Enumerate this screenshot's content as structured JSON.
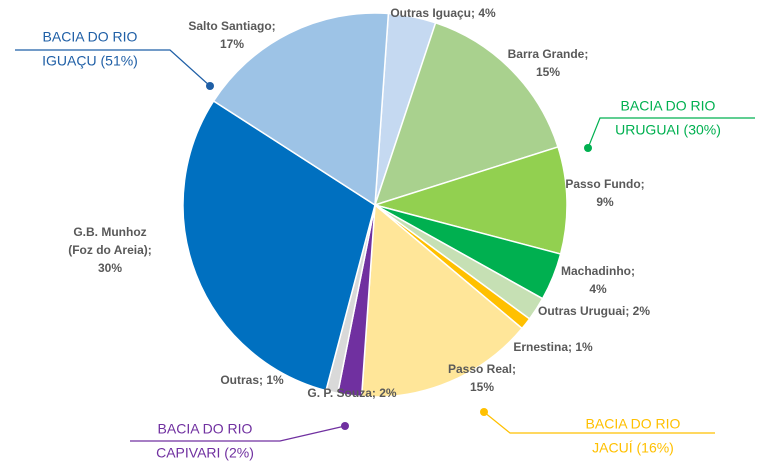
{
  "chart_data": {
    "type": "pie",
    "labels": [
      [
        "Outras Iguaçu; 4%"
      ],
      [
        "Barra Grande;",
        "15%"
      ],
      [
        "Passo Fundo;",
        "9%"
      ],
      [
        "Machadinho;",
        "4%"
      ],
      [
        "Outras Uruguai; 2%"
      ],
      [
        "Ernestina; 1%"
      ],
      [
        "Passo Real;",
        "15%"
      ],
      [
        "G. P. Souza; 2%"
      ],
      [
        "Outras; 1%"
      ],
      [
        "G.B. Munhoz",
        "(Foz do Areia);",
        "30%"
      ],
      [
        "Salto Santiago;",
        "17%"
      ]
    ],
    "values": [
      4,
      15,
      9,
      4,
      2,
      1,
      15,
      2,
      1,
      30,
      17
    ],
    "colors": [
      "#c5d9f1",
      "#a9d18e",
      "#92d050",
      "#00b050",
      "#c6e0b4",
      "#ffc000",
      "#ffe699",
      "#7030a0",
      "#d9d9d9",
      "#0070c0",
      "#9dc3e6"
    ],
    "annotations": [
      {
        "lines": [
          "BACIA DO RIO",
          "IGUAÇU (51%)"
        ],
        "color": "#1f5fa6"
      },
      {
        "lines": [
          "BACIA DO RIO",
          "URUGUAI (30%)"
        ],
        "color": "#00b050"
      },
      {
        "lines": [
          "BACIA DO RIO",
          "JACUÍ (16%)"
        ],
        "color": "#ffc000"
      },
      {
        "lines": [
          "BACIA DO RIO",
          "CAPIVARI (2%)"
        ],
        "color": "#7030a0"
      }
    ]
  }
}
